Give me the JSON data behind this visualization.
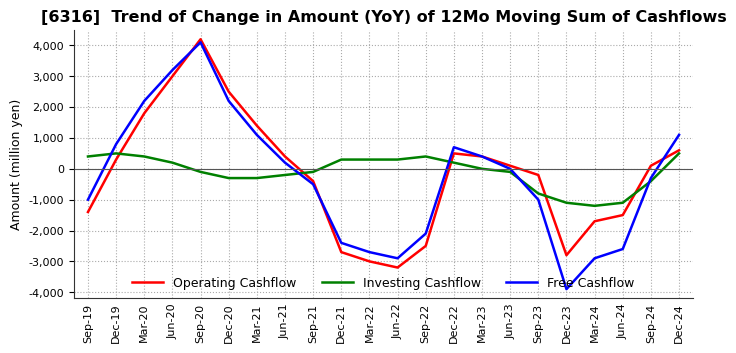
{
  "title": "[6316]  Trend of Change in Amount (YoY) of 12Mo Moving Sum of Cashflows",
  "ylabel": "Amount (million yen)",
  "ylim": [
    -4200,
    4500
  ],
  "yticks": [
    -4000,
    -3000,
    -2000,
    -1000,
    0,
    1000,
    2000,
    3000,
    4000
  ],
  "x_labels": [
    "Sep-19",
    "Dec-19",
    "Mar-20",
    "Jun-20",
    "Sep-20",
    "Dec-20",
    "Mar-21",
    "Jun-21",
    "Sep-21",
    "Dec-21",
    "Mar-22",
    "Jun-22",
    "Sep-22",
    "Dec-22",
    "Mar-23",
    "Jun-23",
    "Sep-23",
    "Dec-23",
    "Mar-24",
    "Jun-24",
    "Sep-24",
    "Dec-24"
  ],
  "operating": [
    -1400,
    300,
    1800,
    3000,
    4200,
    2500,
    1400,
    400,
    -400,
    -2700,
    -3000,
    -3200,
    -2500,
    500,
    400,
    100,
    -200,
    -2800,
    -1700,
    -1500,
    100,
    600
  ],
  "investing": [
    400,
    500,
    400,
    200,
    -100,
    -300,
    -300,
    -200,
    -100,
    300,
    300,
    300,
    400,
    200,
    0,
    -100,
    -800,
    -1100,
    -1200,
    -1100,
    -400,
    500
  ],
  "free": [
    -1000,
    800,
    2200,
    3200,
    4100,
    2200,
    1100,
    200,
    -500,
    -2400,
    -2700,
    -2900,
    -2100,
    700,
    400,
    0,
    -1000,
    -3900,
    -2900,
    -2600,
    -300,
    1100
  ],
  "op_color": "#ff0000",
  "inv_color": "#008000",
  "free_color": "#0000ff",
  "bg_color": "#ffffff",
  "grid_color": "#aaaaaa",
  "title_fontsize": 11.5,
  "label_fontsize": 9,
  "tick_fontsize": 8,
  "legend_items": [
    "Operating Cashflow",
    "Investing Cashflow",
    "Free Cashflow"
  ]
}
